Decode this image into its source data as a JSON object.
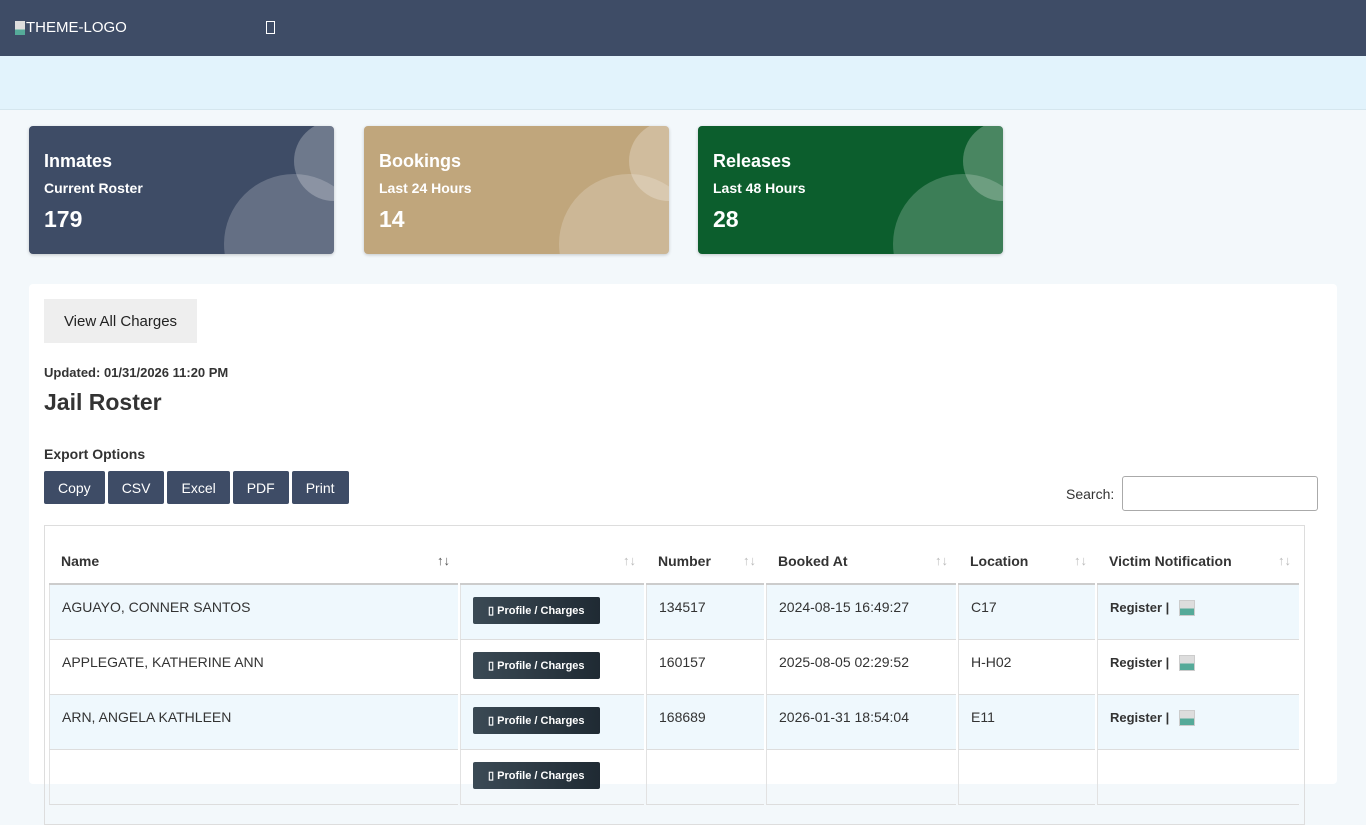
{
  "header": {
    "logo_alt": "THEME-LOGO",
    "menu_icon": "menu-icon"
  },
  "cards": [
    {
      "title": "Inmates",
      "subtitle": "Current Roster",
      "value": "179",
      "color": "#3e4c66"
    },
    {
      "title": "Bookings",
      "subtitle": "Last 24 Hours",
      "value": "14",
      "color": "#c0a67c"
    },
    {
      "title": "Releases",
      "subtitle": "Last 48 Hours",
      "value": "28",
      "color": "#0c5e2d"
    }
  ],
  "main": {
    "view_all_label": "View All Charges",
    "updated": "Updated: 01/31/2026 11:20 PM",
    "title": "Jail Roster",
    "export_label": "Export Options",
    "export_buttons": [
      "Copy",
      "CSV",
      "Excel",
      "PDF",
      "Print"
    ],
    "search_label": "Search:",
    "search_value": ""
  },
  "table": {
    "columns": [
      "Name",
      "",
      "Number",
      "Booked At",
      "Location",
      "Victim Notification"
    ],
    "profile_label": "Profile / Charges",
    "register_label": "Register |",
    "rows": [
      {
        "name": "AGUAYO, CONNER SANTOS",
        "number": "134517",
        "booked": "2024-08-15 16:49:27",
        "location": "C17"
      },
      {
        "name": "APPLEGATE, KATHERINE ANN",
        "number": "160157",
        "booked": "2025-08-05 02:29:52",
        "location": "H-H02"
      },
      {
        "name": "ARN, ANGELA KATHLEEN",
        "number": "168689",
        "booked": "2026-01-31 18:54:04",
        "location": "E11"
      }
    ]
  }
}
